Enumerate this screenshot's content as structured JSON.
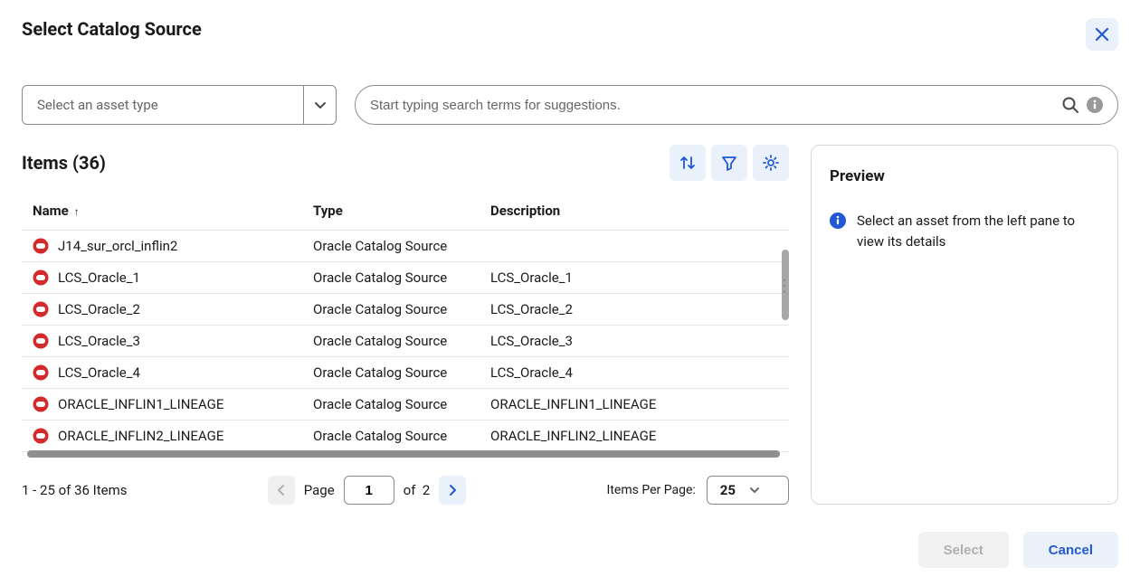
{
  "colors": {
    "accent": "#2258d6",
    "accentBg": "#eaf1fb",
    "border": "#8a8a8a",
    "dbIcon": "#d32b2b",
    "infoIcon": "#2258d6",
    "mutedText": "#666"
  },
  "dialog": {
    "title": "Select Catalog Source"
  },
  "filters": {
    "assetTypePlaceholder": "Select an asset type",
    "searchPlaceholder": "Start typing search terms for suggestions."
  },
  "items": {
    "headerLabel": "Items (36)",
    "count": 36,
    "columns": [
      "Name",
      "Type",
      "Description"
    ],
    "sortColumn": "Name",
    "sortDir": "asc",
    "rows": [
      {
        "name": "J14_sur_orcl_inflin2",
        "type": "Oracle Catalog Source",
        "description": ""
      },
      {
        "name": "LCS_Oracle_1",
        "type": "Oracle Catalog Source",
        "description": "LCS_Oracle_1"
      },
      {
        "name": "LCS_Oracle_2",
        "type": "Oracle Catalog Source",
        "description": "LCS_Oracle_2"
      },
      {
        "name": "LCS_Oracle_3",
        "type": "Oracle Catalog Source",
        "description": "LCS_Oracle_3"
      },
      {
        "name": "LCS_Oracle_4",
        "type": "Oracle Catalog Source",
        "description": "LCS_Oracle_4"
      },
      {
        "name": "ORACLE_INFLIN1_LINEAGE",
        "type": "Oracle Catalog Source",
        "description": "ORACLE_INFLIN1_LINEAGE"
      },
      {
        "name": "ORACLE_INFLIN2_LINEAGE",
        "type": "Oracle Catalog Source",
        "description": "ORACLE_INFLIN2_LINEAGE"
      }
    ]
  },
  "pagination": {
    "status": "1 - 25 of 36 Items",
    "pageLabel": "Page",
    "currentPage": "1",
    "ofLabel": "of",
    "totalPages": "2",
    "itemsPerPageLabel": "Items Per Page:",
    "itemsPerPage": "25"
  },
  "preview": {
    "title": "Preview",
    "message": "Select an asset from the left pane to view its details"
  },
  "footer": {
    "selectLabel": "Select",
    "cancelLabel": "Cancel"
  }
}
